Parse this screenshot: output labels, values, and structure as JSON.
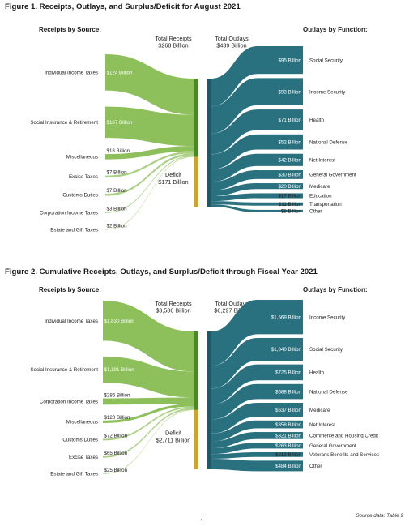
{
  "colors": {
    "receipts": "#8dc05a",
    "receipts_bar": "#4a8a26",
    "deficit": "#d4a41e",
    "outlays": "#2a7180",
    "outlays_bar": "#1f5866"
  },
  "footer": {
    "source": "Source data: Table 9",
    "page_number": "4"
  },
  "chart_data": [
    {
      "type": "sankey",
      "title": "Figure 1. Receipts, Outlays, and Surplus/Deficit for August 2021",
      "receipts_header": "Receipts by Source:",
      "outlays_header": "Outlays by Function:",
      "total_receipts": {
        "line1": "Total Receipts",
        "line2": "$268 Billion",
        "value": 268
      },
      "total_outlays": {
        "line1": "Total Outlays",
        "line2": "$439 Billion",
        "value": 439
      },
      "deficit": {
        "line1": "Deficit",
        "line2": "$171 Billion",
        "value": 171
      },
      "receipts": [
        {
          "name": "Individual Income Taxes",
          "label": "$124 Billion",
          "value": 124
        },
        {
          "name": "Social Insurance & Retirement",
          "label": "$107 Billion",
          "value": 107
        },
        {
          "name": "Miscellaneous",
          "label": "$18 Billion",
          "value": 18
        },
        {
          "name": "Excise Taxes",
          "label": "$7 Billion",
          "value": 7
        },
        {
          "name": "Customs Duties",
          "label": "$7 Billion",
          "value": 7
        },
        {
          "name": "Corporation Income Taxes",
          "label": "$3 Billion",
          "value": 3
        },
        {
          "name": "Estate and Gift Taxes",
          "label": "$2 Billion",
          "value": 2
        }
      ],
      "outlays": [
        {
          "name": "Social Security",
          "label": "$95 Billion",
          "value": 95
        },
        {
          "name": "Income Security",
          "label": "$93 Billion",
          "value": 93
        },
        {
          "name": "Health",
          "label": "$71 Billion",
          "value": 71
        },
        {
          "name": "National Defense",
          "label": "$52 Billion",
          "value": 52
        },
        {
          "name": "Net Interest",
          "label": "$42 Billion",
          "value": 42
        },
        {
          "name": "General Government",
          "label": "$30 Billion",
          "value": 30
        },
        {
          "name": "Medicare",
          "label": "$20 Billion",
          "value": 20
        },
        {
          "name": "Education",
          "label": "$17 Billion",
          "value": 17
        },
        {
          "name": "Transportation",
          "label": "$11 Billion",
          "value": 11
        },
        {
          "name": "Other",
          "label": "$8 Billion",
          "value": 8
        }
      ]
    },
    {
      "type": "sankey",
      "title": "Figure 2. Cumulative Receipts, Outlays, and Surplus/Deficit through Fiscal Year 2021",
      "receipts_header": "Receipts by Source:",
      "outlays_header": "Outlays by Function:",
      "total_receipts": {
        "line1": "Total Receipts",
        "line2": "$3,586 Billion",
        "value": 3586
      },
      "total_outlays": {
        "line1": "Total Outlays",
        "line2": "$6,297 Billion",
        "value": 6297
      },
      "deficit": {
        "line1": "Deficit",
        "line2": "$2,711 Billion",
        "value": 2711
      },
      "receipts": [
        {
          "name": "Individual Income Taxes",
          "label": "$1,830 Billion",
          "value": 1830
        },
        {
          "name": "Social Insurance & Retirement",
          "label": "$1,191 Billion",
          "value": 1191
        },
        {
          "name": "Corporation Income Taxes",
          "label": "$285 Billion",
          "value": 285
        },
        {
          "name": "Miscellaneous",
          "label": "$120 Billion",
          "value": 120
        },
        {
          "name": "Customs Duties",
          "label": "$72 Billion",
          "value": 72
        },
        {
          "name": "Excise Taxes",
          "label": "$65 Billion",
          "value": 65
        },
        {
          "name": "Estate and Gift Taxes",
          "label": "$25 Billion",
          "value": 25
        }
      ],
      "outlays": [
        {
          "name": "Income Security",
          "label": "$1,569 Billion",
          "value": 1569
        },
        {
          "name": "Social Security",
          "label": "$1,040 Billion",
          "value": 1040
        },
        {
          "name": "Health",
          "label": "$725 Billion",
          "value": 725
        },
        {
          "name": "National Defense",
          "label": "$688 Billion",
          "value": 688
        },
        {
          "name": "Medicare",
          "label": "$637 Billion",
          "value": 637
        },
        {
          "name": "Net Interest",
          "label": "$358 Billion",
          "value": 358
        },
        {
          "name": "Commerce and Housing Credit",
          "label": "$321 Billion",
          "value": 321
        },
        {
          "name": "General Government",
          "label": "$263 Billion",
          "value": 263
        },
        {
          "name": "Veterans Benefits and Services",
          "label": "$213 Billion",
          "value": 213
        },
        {
          "name": "Other",
          "label": "$484 Billion",
          "value": 484
        }
      ]
    }
  ]
}
